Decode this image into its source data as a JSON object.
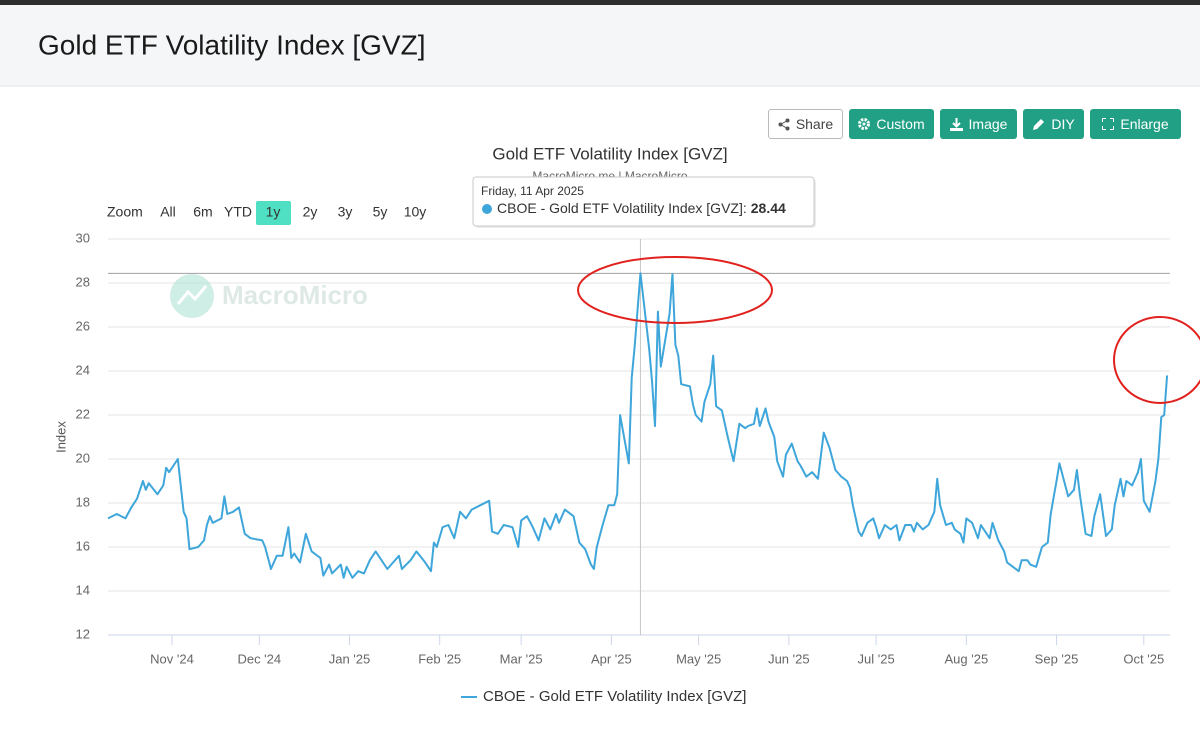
{
  "header": {
    "title": "Gold ETF Volatility Index [GVZ]"
  },
  "toolbar": {
    "buttons": [
      "Share",
      "Custom",
      "Image",
      "DIY",
      "Enlarge"
    ]
  },
  "range_selector": {
    "label": "Zoom",
    "options": [
      "All",
      "6m",
      "YTD",
      "1y",
      "2y",
      "3y",
      "5y",
      "10y"
    ],
    "selected": "1y"
  },
  "tooltip": {
    "date": "Friday, 11 Apr 2025",
    "label": "CBOE - Gold ETF Volatility Index [GVZ]:",
    "value": 28.44
  },
  "chart_data": {
    "type": "line",
    "title": "Gold ETF Volatility Index [GVZ]",
    "subtitle": "MacroMicro.me | MacroMicro",
    "watermark": "MacroMicro",
    "ylabel": "Index",
    "x": [
      "2024-10-10",
      "2024-10-13",
      "2024-10-16",
      "2024-10-18",
      "2024-10-20",
      "2024-10-22",
      "2024-10-23",
      "2024-10-24",
      "2024-10-27",
      "2024-10-29",
      "2024-10-30",
      "2024-10-31",
      "2024-11-03",
      "2024-11-05",
      "2024-11-06",
      "2024-11-07",
      "2024-11-10",
      "2024-11-12",
      "2024-11-13",
      "2024-11-14",
      "2024-11-15",
      "2024-11-18",
      "2024-11-19",
      "2024-11-20",
      "2024-11-22",
      "2024-11-24",
      "2024-11-26",
      "2024-11-28",
      "2024-12-02",
      "2024-12-03",
      "2024-12-05",
      "2024-12-07",
      "2024-12-09",
      "2024-12-11",
      "2024-12-12",
      "2024-12-13",
      "2024-12-15",
      "2024-12-17",
      "2024-12-19",
      "2024-12-22",
      "2024-12-23",
      "2024-12-25",
      "2024-12-26",
      "2024-12-29",
      "2024-12-30",
      "2024-12-31",
      "2025-01-02",
      "2025-01-04",
      "2025-01-06",
      "2025-01-08",
      "2025-01-10",
      "2025-01-12",
      "2025-01-14",
      "2025-01-16",
      "2025-01-18",
      "2025-01-19",
      "2025-01-22",
      "2025-01-24",
      "2025-01-27",
      "2025-01-29",
      "2025-01-30",
      "2025-01-31",
      "2025-02-02",
      "2025-02-04",
      "2025-02-06",
      "2025-02-08",
      "2025-02-10",
      "2025-02-12",
      "2025-02-15",
      "2025-02-18",
      "2025-02-19",
      "2025-02-21",
      "2025-02-23",
      "2025-02-26",
      "2025-02-28",
      "2025-03-01",
      "2025-03-03",
      "2025-03-05",
      "2025-03-07",
      "2025-03-09",
      "2025-03-11",
      "2025-03-13",
      "2025-03-14",
      "2025-03-16",
      "2025-03-19",
      "2025-03-21",
      "2025-03-23",
      "2025-03-25",
      "2025-03-26",
      "2025-03-27",
      "2025-03-29",
      "2025-03-31",
      "2025-04-02",
      "2025-04-03",
      "2025-04-04",
      "2025-04-07",
      "2025-04-08",
      "2025-04-09",
      "2025-04-11",
      "2025-04-14",
      "2025-04-15",
      "2025-04-16",
      "2025-04-17",
      "2025-04-18",
      "2025-04-21",
      "2025-04-22",
      "2025-04-23",
      "2025-04-24",
      "2025-04-25",
      "2025-04-28",
      "2025-04-29",
      "2025-04-30",
      "2025-05-02",
      "2025-05-03",
      "2025-05-05",
      "2025-05-06",
      "2025-05-07",
      "2025-05-09",
      "2025-05-11",
      "2025-05-13",
      "2025-05-15",
      "2025-05-17",
      "2025-05-18",
      "2025-05-20",
      "2025-05-21",
      "2025-05-22",
      "2025-05-24",
      "2025-05-25",
      "2025-05-27",
      "2025-05-28",
      "2025-05-30",
      "2025-05-31",
      "2025-06-02",
      "2025-06-04",
      "2025-06-05",
      "2025-06-07",
      "2025-06-09",
      "2025-06-11",
      "2025-06-13",
      "2025-06-15",
      "2025-06-17",
      "2025-06-19",
      "2025-06-21",
      "2025-06-22",
      "2025-06-23",
      "2025-06-25",
      "2025-06-26",
      "2025-06-28",
      "2025-06-30",
      "2025-07-01",
      "2025-07-02",
      "2025-07-04",
      "2025-07-06",
      "2025-07-08",
      "2025-07-09",
      "2025-07-11",
      "2025-07-13",
      "2025-07-14",
      "2025-07-15",
      "2025-07-17",
      "2025-07-19",
      "2025-07-21",
      "2025-07-22",
      "2025-07-23",
      "2025-07-25",
      "2025-07-27",
      "2025-07-28",
      "2025-07-30",
      "2025-07-31",
      "2025-08-01",
      "2025-08-03",
      "2025-08-05",
      "2025-08-06",
      "2025-08-08",
      "2025-08-09",
      "2025-08-10",
      "2025-08-12",
      "2025-08-14",
      "2025-08-15",
      "2025-08-17",
      "2025-08-19",
      "2025-08-20",
      "2025-08-22",
      "2025-08-23",
      "2025-08-25",
      "2025-08-27",
      "2025-08-29",
      "2025-08-30",
      "2025-09-01",
      "2025-09-02",
      "2025-09-04",
      "2025-09-05",
      "2025-09-07",
      "2025-09-08",
      "2025-09-09",
      "2025-09-11",
      "2025-09-13",
      "2025-09-14",
      "2025-09-16",
      "2025-09-18",
      "2025-09-20",
      "2025-09-21",
      "2025-09-23",
      "2025-09-24",
      "2025-09-25",
      "2025-09-27",
      "2025-09-29",
      "2025-09-30",
      "2025-10-01",
      "2025-10-03",
      "2025-10-05",
      "2025-10-06",
      "2025-10-07",
      "2025-10-08",
      "2025-10-09"
    ],
    "series": [
      {
        "name": "CBOE - Gold ETF Volatility Index [GVZ]",
        "color": "#3ea6da",
        "values": [
          17.3,
          17.5,
          17.3,
          17.8,
          18.2,
          19.0,
          18.6,
          18.9,
          18.4,
          18.8,
          19.6,
          19.4,
          20.0,
          17.6,
          17.3,
          15.9,
          16.0,
          16.3,
          17.0,
          17.4,
          17.1,
          17.3,
          18.3,
          17.5,
          17.6,
          17.8,
          16.6,
          16.4,
          16.3,
          16.0,
          15.0,
          15.6,
          15.6,
          16.9,
          15.5,
          15.7,
          15.3,
          16.6,
          15.8,
          15.5,
          14.7,
          15.2,
          14.8,
          15.2,
          14.6,
          15.1,
          14.6,
          14.9,
          14.8,
          15.4,
          15.8,
          15.4,
          15.0,
          15.3,
          15.6,
          15.0,
          15.4,
          15.8,
          15.3,
          14.9,
          16.2,
          16.0,
          16.9,
          17.0,
          16.4,
          17.6,
          17.3,
          17.7,
          17.9,
          18.1,
          16.7,
          16.6,
          17.0,
          16.9,
          16.0,
          17.2,
          17.4,
          16.9,
          16.3,
          17.3,
          16.8,
          17.5,
          17.1,
          17.7,
          17.4,
          16.2,
          15.9,
          15.2,
          15.0,
          16.0,
          17.0,
          17.9,
          17.9,
          18.4,
          22.0,
          19.8,
          23.7,
          25.1,
          28.44,
          25.0,
          23.5,
          21.5,
          26.7,
          24.2,
          26.6,
          28.4,
          25.2,
          24.7,
          23.4,
          23.3,
          22.5,
          22.0,
          21.7,
          22.6,
          23.4,
          24.7,
          22.4,
          22.2,
          21.0,
          19.9,
          21.6,
          21.4,
          21.5,
          21.6,
          22.3,
          21.5,
          22.3,
          21.7,
          21.0,
          19.9,
          19.2,
          20.2,
          20.7,
          19.9,
          19.7,
          19.2,
          19.4,
          19.1,
          21.2,
          20.5,
          19.5,
          19.2,
          19.0,
          18.7,
          17.9,
          16.7,
          16.5,
          17.1,
          17.3,
          16.9,
          16.4,
          17.0,
          16.8,
          17.0,
          16.3,
          17.0,
          17.0,
          16.7,
          17.1,
          16.8,
          17.0,
          17.6,
          19.1,
          17.9,
          17.0,
          17.1,
          16.8,
          16.6,
          16.2,
          17.3,
          17.1,
          16.4,
          17.0,
          16.6,
          16.4,
          17.1,
          16.3,
          15.8,
          15.3,
          15.1,
          14.9,
          15.4,
          15.4,
          15.2,
          15.1,
          16.0,
          16.2,
          17.5,
          19.0,
          19.8,
          18.8,
          18.3,
          18.6,
          19.5,
          18.4,
          16.6,
          16.5,
          17.4,
          18.4,
          16.5,
          16.8,
          17.9,
          19.1,
          18.3,
          19.0,
          18.8,
          19.4,
          20.0,
          18.1,
          17.6,
          19.0,
          20.0,
          21.9,
          22.0,
          23.8
        ]
      }
    ],
    "xlim": [
      "2024-10-10",
      "2025-10-10"
    ],
    "xticks": [
      {
        "value": "2024-11-01",
        "label": "Nov '24"
      },
      {
        "value": "2024-12-01",
        "label": "Dec '24"
      },
      {
        "value": "2025-01-01",
        "label": "Jan '25"
      },
      {
        "value": "2025-02-01",
        "label": "Feb '25"
      },
      {
        "value": "2025-03-01",
        "label": "Mar '25"
      },
      {
        "value": "2025-04-01",
        "label": "Apr '25"
      },
      {
        "value": "2025-05-01",
        "label": "May '25"
      },
      {
        "value": "2025-06-01",
        "label": "Jun '25"
      },
      {
        "value": "2025-07-01",
        "label": "Jul '25"
      },
      {
        "value": "2025-08-01",
        "label": "Aug '25"
      },
      {
        "value": "2025-09-01",
        "label": "Sep '25"
      },
      {
        "value": "2025-10-01",
        "label": "Oct '25"
      }
    ],
    "ylim": [
      12,
      30
    ],
    "yticks": [
      12,
      14,
      16,
      18,
      20,
      22,
      24,
      26,
      28,
      30
    ],
    "grid": true
  }
}
